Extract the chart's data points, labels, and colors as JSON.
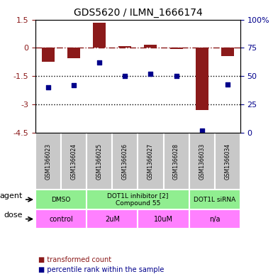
{
  "title": "GDS5620 / ILMN_1666174",
  "samples": [
    "GSM1366023",
    "GSM1366024",
    "GSM1366025",
    "GSM1366026",
    "GSM1366027",
    "GSM1366028",
    "GSM1366033",
    "GSM1366034"
  ],
  "bar_values": [
    -0.75,
    -0.55,
    1.35,
    0.1,
    0.15,
    -0.05,
    -3.3,
    -0.45
  ],
  "dot_values": [
    40,
    42,
    62,
    50,
    52,
    50,
    2,
    43
  ],
  "ylim_left": [
    -4.5,
    1.5
  ],
  "ylim_right": [
    0,
    100
  ],
  "left_ticks": [
    1.5,
    0,
    -1.5,
    -3,
    -4.5
  ],
  "right_ticks": [
    100,
    75,
    50,
    25,
    0
  ],
  "bar_color": "#8B1A1A",
  "dot_color": "#00008B",
  "hline_y": 0,
  "dotted_lines": [
    -1.5,
    -3.0
  ],
  "agent_groups": [
    {
      "label": "DMSO",
      "start": 0,
      "end": 2,
      "color": "#90EE90"
    },
    {
      "label": "DOT1L inhibitor [2]\nCompound 55",
      "start": 2,
      "end": 6,
      "color": "#90EE90"
    },
    {
      "label": "DOT1L siRNA",
      "start": 6,
      "end": 8,
      "color": "#90EE90"
    }
  ],
  "dose_groups": [
    {
      "label": "control",
      "start": 0,
      "end": 2,
      "color": "#FF80FF"
    },
    {
      "label": "2uM",
      "start": 2,
      "end": 4,
      "color": "#FF80FF"
    },
    {
      "label": "10uM",
      "start": 4,
      "end": 6,
      "color": "#FF80FF"
    },
    {
      "label": "n/a",
      "start": 6,
      "end": 8,
      "color": "#FF80FF"
    }
  ],
  "sample_bg_color": "#C8C8C8",
  "legend_items": [
    {
      "color": "#8B1A1A",
      "label": "transformed count"
    },
    {
      "color": "#00008B",
      "label": "percentile rank within the sample"
    }
  ],
  "xlabel": "",
  "ylabel_left": "",
  "ylabel_right": ""
}
